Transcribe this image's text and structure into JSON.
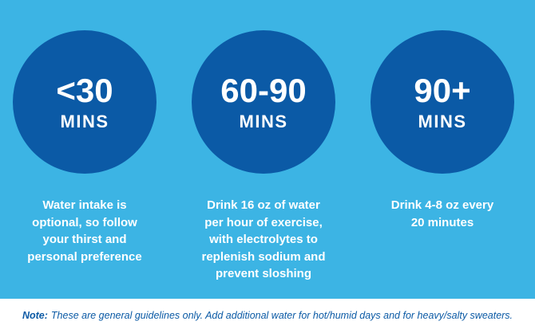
{
  "theme": {
    "background_light_blue": "#3CB4E4",
    "circle_dark_blue": "#0B5AA6",
    "text_white": "#FFFFFF",
    "note_blue": "#0B5AA5"
  },
  "columns": [
    {
      "duration": "<30",
      "unit": "MINS",
      "description_lines": [
        "Water intake is",
        "optional, so follow",
        "your thirst and",
        "personal preference"
      ]
    },
    {
      "duration": "60-90",
      "unit": "MINS",
      "description_lines": [
        "Drink 16 oz of water",
        "per hour of exercise,",
        "with electrolytes to",
        "replenish sodium and",
        "prevent sloshing"
      ]
    },
    {
      "duration": "90+",
      "unit": "MINS",
      "description_lines": [
        "Drink 4-8 oz every",
        "20 minutes"
      ]
    }
  ],
  "note": {
    "label": "Note:",
    "text": "These are general guidelines only. Add additional water for hot/humid days and for heavy/salty sweaters."
  }
}
